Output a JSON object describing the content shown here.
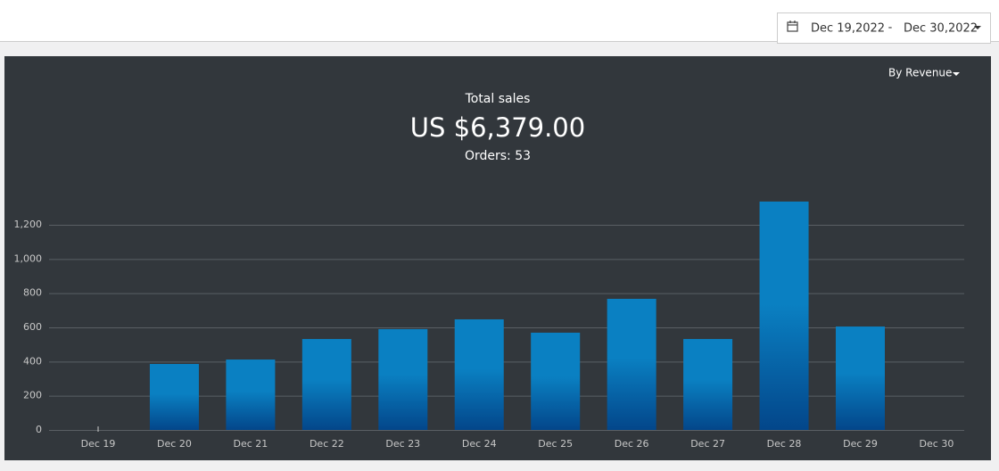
{
  "header": {
    "date_from": "Dec 19,2022",
    "date_separator": "-",
    "date_to": "Dec 30,2022"
  },
  "chart_data": {
    "type": "bar",
    "dropdown": "By Revenue",
    "title": "Total sales",
    "total": "US $6,379.00",
    "subtitle": "Orders: 53",
    "categories": [
      "Dec 19",
      "Dec 20",
      "Dec 21",
      "Dec 22",
      "Dec 23",
      "Dec 24",
      "Dec 25",
      "Dec 26",
      "Dec 27",
      "Dec 28",
      "Dec 29",
      "Dec 30"
    ],
    "values": [
      0,
      386,
      412,
      532,
      590,
      647,
      569,
      767,
      532,
      1336,
      605,
      0
    ],
    "color": "#0a80c2",
    "ylim": [
      0,
      1400
    ],
    "yticks": [
      0,
      200,
      400,
      600,
      800,
      {
        "value": 1000,
        "label": "1,000"
      },
      {
        "value": 1200,
        "label": "1,200"
      }
    ],
    "grid": true
  }
}
